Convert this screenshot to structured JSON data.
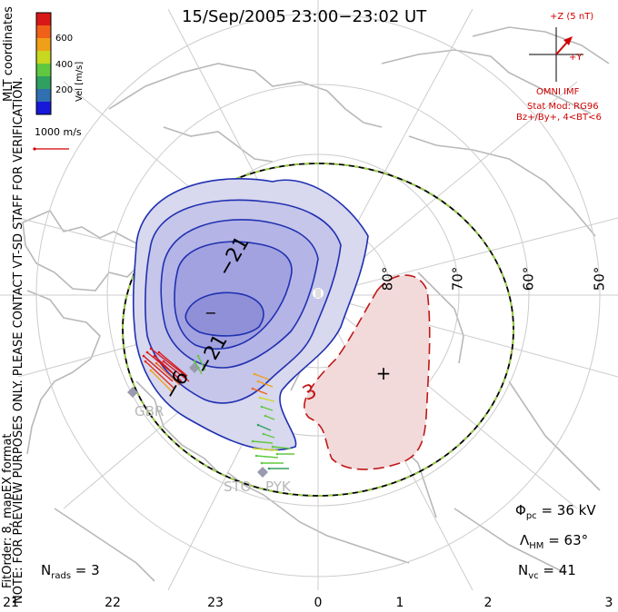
{
  "title": "15/Sep/2005 23:00−23:02 UT",
  "side_note_line1": "NOTE: FOR PREVIEW PURPOSES ONLY. PLEASE CONTACT VT-SD STAFF FOR VERIFICATION.",
  "side_note_line2": "FitOrder: 8, mapEX format",
  "coord_label": "MLT coordinates",
  "colorbar": {
    "label": "Vel [m/s]",
    "ticks": [
      "600",
      "400",
      "200"
    ],
    "colors": [
      "#d81818",
      "#f06018",
      "#f0a018",
      "#c8d820",
      "#60c840",
      "#30a060",
      "#3070b0",
      "#1818d8"
    ]
  },
  "scale_vector_label": "1000 m/s",
  "imf": {
    "z_label": "+Z (5 nT)",
    "y_label": "+Y",
    "source": "OMNI IMF",
    "model": "Stat Mod: RG96",
    "condition": "Bz+/By+, 4<BT<6",
    "color": "#d00000"
  },
  "latitude_labels": [
    "80°",
    "70°",
    "60°",
    "50°"
  ],
  "contour_labels": [
    "−21",
    "−",
    "−21",
    "−6",
    "3"
  ],
  "radar_labels": [
    "GBR",
    "STO",
    "PYK"
  ],
  "stats": {
    "phi_pc": "Φ",
    "phi_pc_sub": "pc",
    "phi_pc_value": " = 36 kV",
    "lambda_hm": "Λ",
    "lambda_hm_sub": "HM",
    "lambda_hm_value": " = 63°",
    "n_vc": "N",
    "n_vc_sub": "vc",
    "n_vc_value": " = 41",
    "n_rads": "N",
    "n_rads_sub": "rads",
    "n_rads_value": " = 3"
  },
  "mlt_ticks": [
    "21",
    "22",
    "23",
    "0",
    "1",
    "2",
    "3"
  ]
}
